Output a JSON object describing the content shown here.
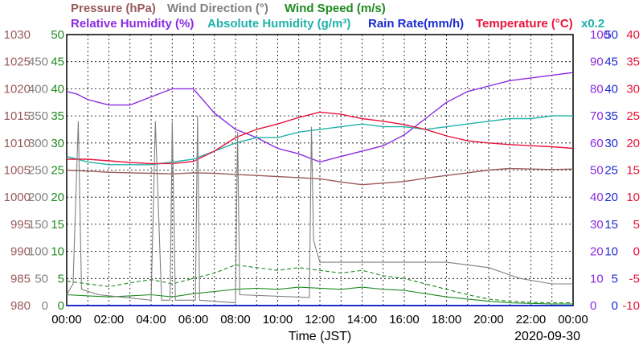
{
  "chart_data": {
    "type": "line",
    "title": "",
    "date_label": "2020-09-30",
    "xlabel": "Time (JST)",
    "x_ticks": [
      "00:00",
      "02:00",
      "04:00",
      "06:00",
      "08:00",
      "10:00",
      "12:00",
      "14:00",
      "16:00",
      "18:00",
      "20:00",
      "22:00",
      "00:00"
    ],
    "x_range_hours": [
      0,
      24
    ],
    "grid": true,
    "legend": {
      "row1": [
        {
          "text": "Pressure (hPa)",
          "color": "#9a5a5a"
        },
        {
          "text": "Wind Direction (°)",
          "color": "#808080"
        },
        {
          "text": "Wind Speed (m/s)",
          "color": "#1f8a1f"
        }
      ],
      "row2": [
        {
          "text": "Relative Humidity (%)",
          "color": "#8a2be2"
        },
        {
          "text": "Absolute Humidity (g/m³)",
          "color": "#20b2aa"
        },
        {
          "text": "Rain Rate(mm/h)",
          "color": "#1a2ccf"
        },
        {
          "text": "Temperature (°C)",
          "color": "#e8143c"
        }
      ],
      "multiplier": {
        "text": "x0.2",
        "color": "#20b2aa"
      }
    },
    "axes": {
      "pressure": {
        "ticks": [
          "1030",
          "1025",
          "1020",
          "1015",
          "1010",
          "1005",
          "1000",
          "995",
          "990",
          "985",
          "980"
        ],
        "color": "#9a5a5a",
        "range": [
          980,
          1030
        ]
      },
      "wind_direction": {
        "ticks": [
          "450",
          "400",
          "350",
          "300",
          "250",
          "200",
          "150",
          "100",
          "50",
          "0"
        ],
        "color": "#808080",
        "range": [
          0,
          500
        ]
      },
      "wind_speed": {
        "ticks": [
          "50",
          "45",
          "40",
          "35",
          "30",
          "25",
          "20",
          "15",
          "10",
          "5",
          "0"
        ],
        "color": "#1f8a1f",
        "range": [
          0,
          50
        ]
      },
      "humidity": {
        "ticks": [
          "100",
          "90",
          "80",
          "70",
          "60",
          "50",
          "40",
          "30",
          "20",
          "10",
          "0"
        ],
        "color": "#8a2be2",
        "range": [
          0,
          100
        ]
      },
      "rain": {
        "ticks": [
          "50",
          "45",
          "40",
          "35",
          "30",
          "25",
          "20",
          "15",
          "10",
          "5",
          "0"
        ],
        "color": "#1a2ccf",
        "range": [
          0,
          50
        ]
      },
      "temperature": {
        "ticks": [
          "40",
          "35",
          "30",
          "25",
          "20",
          "15",
          "10",
          "5",
          "0",
          "-5",
          "-10"
        ],
        "color": "#e8143c",
        "range": [
          -10,
          40
        ]
      }
    },
    "series": [
      {
        "name": "Pressure (hPa)",
        "color": "#9a5a5a",
        "axis": "pressure",
        "x": [
          0,
          1,
          2,
          3,
          4,
          5,
          6,
          7,
          8,
          9,
          10,
          11,
          12,
          13,
          14,
          15,
          16,
          17,
          18,
          19,
          20,
          21,
          22,
          23,
          24
        ],
        "y": [
          1005.0,
          1004.8,
          1004.6,
          1004.5,
          1004.4,
          1004.3,
          1004.5,
          1004.4,
          1004.2,
          1004.0,
          1003.8,
          1003.6,
          1003.4,
          1002.8,
          1002.3,
          1002.6,
          1002.9,
          1003.5,
          1004.0,
          1004.5,
          1005.0,
          1005.3,
          1005.2,
          1005.1,
          1005.2
        ]
      },
      {
        "name": "Relative Humidity (%)",
        "color": "#8a2be2",
        "axis": "humidity",
        "x": [
          0,
          0.5,
          1,
          2,
          3,
          4,
          5,
          6,
          7,
          8,
          9,
          10,
          11,
          12,
          13,
          14,
          15,
          16,
          17,
          18,
          19,
          20,
          21,
          22,
          23,
          24
        ],
        "y": [
          79,
          78,
          76,
          74,
          74,
          77,
          80,
          80,
          71,
          65,
          62,
          58,
          56,
          53,
          55,
          57,
          59,
          63,
          69,
          75,
          79,
          81,
          83,
          84,
          85,
          86
        ]
      },
      {
        "name": "Absolute Humidity (g/m³) x0.2",
        "color": "#20b2aa",
        "axis": "humidity",
        "x": [
          0,
          1,
          2,
          3,
          4,
          5,
          6,
          7,
          8,
          9,
          10,
          11,
          12,
          13,
          14,
          15,
          16,
          17,
          18,
          19,
          20,
          21,
          22,
          23,
          24
        ],
        "y": [
          55,
          53,
          52,
          52,
          52,
          53,
          54,
          57,
          60,
          62,
          62,
          64,
          65,
          66,
          67,
          66,
          66,
          65,
          66,
          67,
          68,
          69,
          69,
          70,
          70
        ]
      },
      {
        "name": "Temperature (°C)",
        "color": "#e8143c",
        "axis": "temperature",
        "x": [
          0,
          1,
          2,
          3,
          4,
          5,
          6,
          7,
          8,
          9,
          10,
          11,
          12,
          13,
          14,
          15,
          16,
          17,
          18,
          19,
          20,
          21,
          22,
          23,
          24
        ],
        "y": [
          17.0,
          17.0,
          16.7,
          16.4,
          16.2,
          16.2,
          16.6,
          18.5,
          21.0,
          22.5,
          23.5,
          24.7,
          25.7,
          25.3,
          24.5,
          24.0,
          23.4,
          22.5,
          21.3,
          20.4,
          20.0,
          19.7,
          19.5,
          19.3,
          19.0
        ]
      },
      {
        "name": "Wind Speed (m/s)",
        "color": "#1f8a1f",
        "axis": "wind_speed",
        "x": [
          0,
          1,
          2,
          3,
          4,
          5,
          6,
          7,
          8,
          9,
          10,
          11,
          12,
          13,
          14,
          15,
          16,
          17,
          18,
          19,
          20,
          21,
          22,
          23,
          24
        ],
        "y": [
          2.0,
          1.8,
          1.6,
          1.8,
          2.0,
          1.6,
          2.2,
          2.6,
          3.0,
          3.2,
          3.0,
          3.4,
          3.2,
          3.0,
          3.4,
          3.0,
          2.8,
          2.2,
          1.6,
          1.2,
          0.8,
          0.5,
          0.4,
          0.3,
          0.3
        ]
      },
      {
        "name": "Wind Speed gust (m/s)",
        "color": "#1f8a1f",
        "axis": "wind_speed",
        "x": [
          0,
          1,
          2,
          3,
          4,
          5,
          6,
          7,
          8,
          9,
          10,
          11,
          12,
          13,
          14,
          15,
          16,
          17,
          18,
          19,
          20,
          21,
          22,
          23,
          24
        ],
        "y": [
          4.5,
          4.0,
          3.5,
          4.2,
          4.8,
          4.0,
          5.0,
          6.0,
          7.5,
          7.0,
          6.5,
          7.0,
          6.5,
          6.0,
          6.5,
          5.5,
          5.0,
          4.0,
          3.0,
          2.0,
          1.2,
          0.8,
          0.6,
          0.5,
          0.5
        ]
      },
      {
        "name": "Wind Direction (°)",
        "color": "#808080",
        "axis": "wind_direction",
        "x": [
          0,
          0.3,
          0.55,
          0.7,
          1.5,
          4.0,
          4.2,
          4.5,
          4.9,
          5.0,
          5.15,
          5.3,
          6.1,
          6.2,
          6.3,
          8.0,
          8.1,
          8.2,
          11.5,
          11.6,
          11.7,
          12.0,
          14.0,
          16.5,
          18.0,
          20.0,
          21.5,
          23.0,
          24.0
        ],
        "y": [
          20,
          40,
          340,
          30,
          20,
          10,
          340,
          10,
          10,
          340,
          10,
          10,
          10,
          350,
          10,
          5,
          320,
          20,
          15,
          330,
          120,
          80,
          80,
          80,
          80,
          70,
          50,
          40,
          40
        ]
      },
      {
        "name": "Rain Rate(mm/h)",
        "color": "#1a2ccf",
        "axis": "rain",
        "x": [
          0,
          24
        ],
        "y": [
          0,
          0
        ]
      }
    ]
  }
}
